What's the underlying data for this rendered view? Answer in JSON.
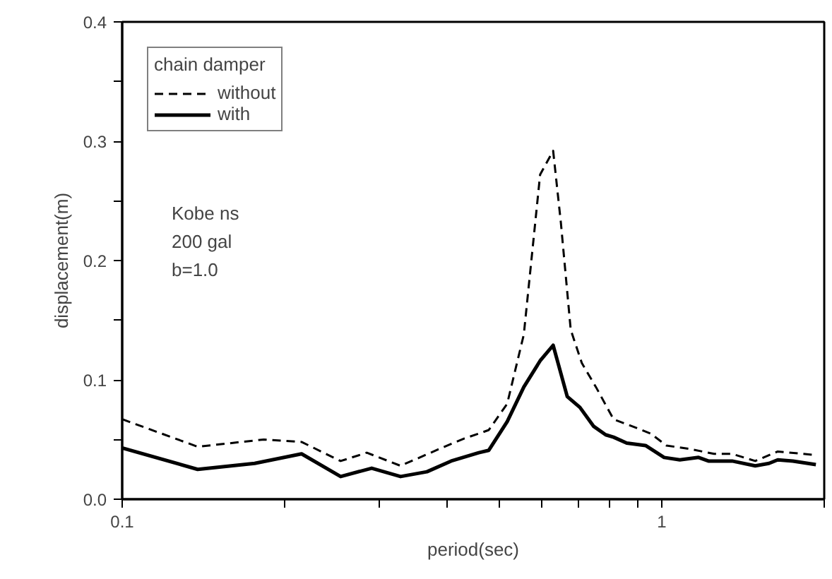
{
  "chart_data": {
    "type": "line",
    "xlabel": "period(sec)",
    "ylabel": "displacement(m)",
    "legend_title": "chain damper",
    "legend": "top left",
    "log": "x",
    "grid": false,
    "xlim": [
      0.1,
      2
    ],
    "ylim": [
      0,
      0.4
    ],
    "xticks": [
      0.1,
      {
        "value": 0.2,
        "label": null
      },
      {
        "value": 0.3,
        "label": null
      },
      {
        "value": 0.4,
        "label": null
      },
      {
        "value": 0.5,
        "label": null
      },
      {
        "value": 0.6,
        "label": null
      },
      {
        "value": 0.7,
        "label": null
      },
      {
        "value": 0.8,
        "label": null
      },
      {
        "value": 0.9,
        "label": null
      },
      1,
      {
        "value": 2,
        "label": null
      }
    ],
    "yticks": [
      {
        "value": 0,
        "label": "0.0"
      },
      {
        "value": 0.05,
        "label": null
      },
      0.1,
      {
        "value": 0.15,
        "label": null
      },
      0.2,
      {
        "value": 0.25,
        "label": null
      },
      0.3,
      {
        "value": 0.35,
        "label": null
      },
      0.4
    ],
    "annotations": [
      "Kobe ns",
      "200 gal",
      "b=1.0"
    ],
    "series": [
      {
        "name": "without",
        "color": "#000000",
        "line_style": "dashed",
        "x": [
          0.1,
          0.138,
          0.183,
          0.215,
          0.254,
          0.284,
          0.328,
          0.391,
          0.431,
          0.458,
          0.478,
          0.517,
          0.555,
          0.595,
          0.629,
          0.65,
          0.678,
          0.711,
          0.755,
          0.814,
          0.906,
          0.954,
          1.02,
          1.13,
          1.25,
          1.35,
          1.49,
          1.64,
          1.93
        ],
        "values": [
          0.067,
          0.044,
          0.05,
          0.048,
          0.032,
          0.039,
          0.028,
          0.043,
          0.051,
          0.055,
          0.058,
          0.08,
          0.138,
          0.272,
          0.292,
          0.232,
          0.142,
          0.114,
          0.094,
          0.067,
          0.059,
          0.055,
          0.045,
          0.042,
          0.038,
          0.038,
          0.032,
          0.04,
          0.037
        ]
      },
      {
        "name": "with",
        "color": "#000000",
        "line_style": "solid",
        "x": [
          0.1,
          0.138,
          0.176,
          0.215,
          0.254,
          0.29,
          0.328,
          0.367,
          0.407,
          0.458,
          0.478,
          0.517,
          0.555,
          0.595,
          0.629,
          0.668,
          0.705,
          0.748,
          0.787,
          0.814,
          0.861,
          0.933,
          1.01,
          1.08,
          1.17,
          1.22,
          1.35,
          1.49,
          1.58,
          1.64,
          1.75,
          1.93
        ],
        "values": [
          0.043,
          0.025,
          0.03,
          0.038,
          0.019,
          0.026,
          0.019,
          0.023,
          0.032,
          0.039,
          0.041,
          0.065,
          0.094,
          0.116,
          0.129,
          0.086,
          0.077,
          0.061,
          0.054,
          0.052,
          0.047,
          0.045,
          0.035,
          0.033,
          0.035,
          0.032,
          0.032,
          0.028,
          0.03,
          0.033,
          0.032,
          0.029
        ]
      }
    ]
  }
}
